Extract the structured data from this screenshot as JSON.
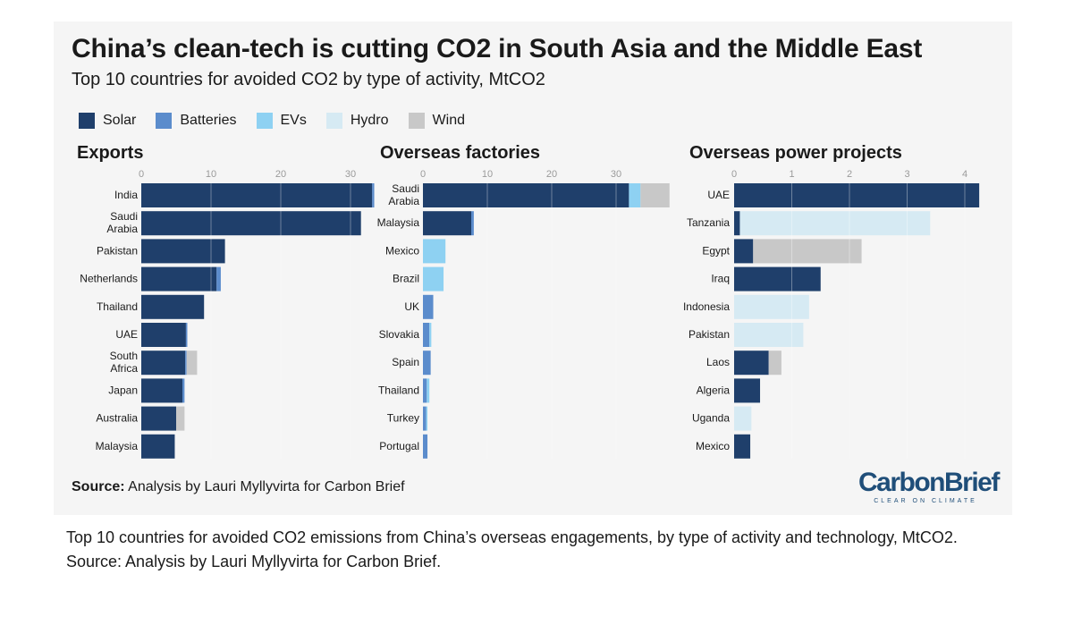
{
  "title": "China’s clean-tech is cutting CO2 in South Asia and the Middle East",
  "subtitle": "Top 10 countries for avoided CO2 by type of activity, MtCO2",
  "legend": [
    {
      "label": "Solar",
      "color": "#1f3f6b"
    },
    {
      "label": "Batteries",
      "color": "#5b8ccc"
    },
    {
      "label": "EVs",
      "color": "#8ed1f2"
    },
    {
      "label": "Hydro",
      "color": "#d6eaf3"
    },
    {
      "label": "Wind",
      "color": "#c8c8c8"
    }
  ],
  "source": {
    "prefix": "Source:",
    "text": "Analysis by Lauri Myllyvirta for Carbon Brief"
  },
  "logo": {
    "name": "CarbonBrief",
    "tagline": "CLEAR ON CLIMATE"
  },
  "caption": {
    "line1": "Top 10 countries for avoided CO2 emissions from China’s overseas engagements, by type of activity and technology, MtCO2.",
    "line2": "Source: Analysis by Lauri Myllyvirta for Carbon Brief."
  },
  "chart_data": [
    {
      "type": "bar",
      "orientation": "horizontal",
      "stacked": true,
      "title": "Exports",
      "ticks": [
        0,
        10,
        20,
        30
      ],
      "xlim": [
        0,
        34
      ],
      "grid": true,
      "categories": [
        "India",
        "Saudi Arabia",
        "Pakistan",
        "Netherlands",
        "Thailand",
        "UAE",
        "South Africa",
        "Japan",
        "Australia",
        "Malaysia"
      ],
      "series": [
        {
          "name": "Solar",
          "values": [
            33.1,
            31.5,
            12.0,
            10.8,
            9.0,
            6.4,
            6.3,
            5.9,
            5.0,
            4.8
          ]
        },
        {
          "name": "Batteries",
          "values": [
            0.3,
            0,
            0,
            0.6,
            0,
            0.2,
            0.2,
            0.3,
            0,
            0
          ]
        },
        {
          "name": "EVs",
          "values": [
            0,
            0,
            0,
            0,
            0,
            0,
            0,
            0,
            0,
            0
          ]
        },
        {
          "name": "Hydro",
          "values": [
            0,
            0,
            0,
            0,
            0,
            0,
            0,
            0,
            0,
            0
          ]
        },
        {
          "name": "Wind",
          "values": [
            0,
            0,
            0,
            0,
            0,
            0,
            1.5,
            0,
            1.2,
            0
          ]
        }
      ]
    },
    {
      "type": "bar",
      "orientation": "horizontal",
      "stacked": true,
      "title": "Overseas factories",
      "ticks": [
        0,
        10,
        20,
        30
      ],
      "xlim": [
        0,
        39
      ],
      "grid": true,
      "categories": [
        "Saudi Arabia",
        "Malaysia",
        "Mexico",
        "Brazil",
        "UK",
        "Slovakia",
        "Spain",
        "Thailand",
        "Turkey",
        "Portugal"
      ],
      "series": [
        {
          "name": "Solar",
          "values": [
            32.0,
            7.5,
            0,
            0,
            0,
            0,
            0,
            0,
            0,
            0
          ]
        },
        {
          "name": "Batteries",
          "values": [
            0,
            0.4,
            0,
            0,
            1.6,
            1.0,
            1.2,
            0.6,
            0.5,
            0.7
          ]
        },
        {
          "name": "EVs",
          "values": [
            1.8,
            0,
            3.5,
            3.2,
            0,
            0.3,
            0,
            0.4,
            0.2,
            0
          ]
        },
        {
          "name": "Hydro",
          "values": [
            0,
            0,
            0,
            0,
            0,
            0,
            0,
            0,
            0,
            0
          ]
        },
        {
          "name": "Wind",
          "values": [
            4.5,
            0,
            0,
            0,
            0,
            0,
            0,
            0,
            0,
            0
          ]
        }
      ]
    },
    {
      "type": "bar",
      "orientation": "horizontal",
      "stacked": true,
      "title": "Overseas power projects",
      "ticks": [
        0,
        1,
        2,
        3,
        4
      ],
      "xlim": [
        0,
        4.3
      ],
      "grid": true,
      "categories": [
        "UAE",
        "Tanzania",
        "Egypt",
        "Iraq",
        "Indonesia",
        "Pakistan",
        "Laos",
        "Algeria",
        "Uganda",
        "Mexico"
      ],
      "series": [
        {
          "name": "Solar",
          "values": [
            4.25,
            0.1,
            0.33,
            1.5,
            0,
            0,
            0.6,
            0.45,
            0,
            0.28
          ]
        },
        {
          "name": "Batteries",
          "values": [
            0,
            0,
            0,
            0,
            0,
            0,
            0,
            0,
            0,
            0
          ]
        },
        {
          "name": "EVs",
          "values": [
            0,
            0,
            0,
            0,
            0,
            0,
            0,
            0,
            0,
            0
          ]
        },
        {
          "name": "Hydro",
          "values": [
            0,
            3.3,
            0,
            0,
            1.3,
            1.2,
            0,
            0,
            0.3,
            0
          ]
        },
        {
          "name": "Wind",
          "values": [
            0,
            0,
            1.88,
            0,
            0,
            0,
            0.22,
            0,
            0,
            0
          ]
        }
      ]
    }
  ]
}
